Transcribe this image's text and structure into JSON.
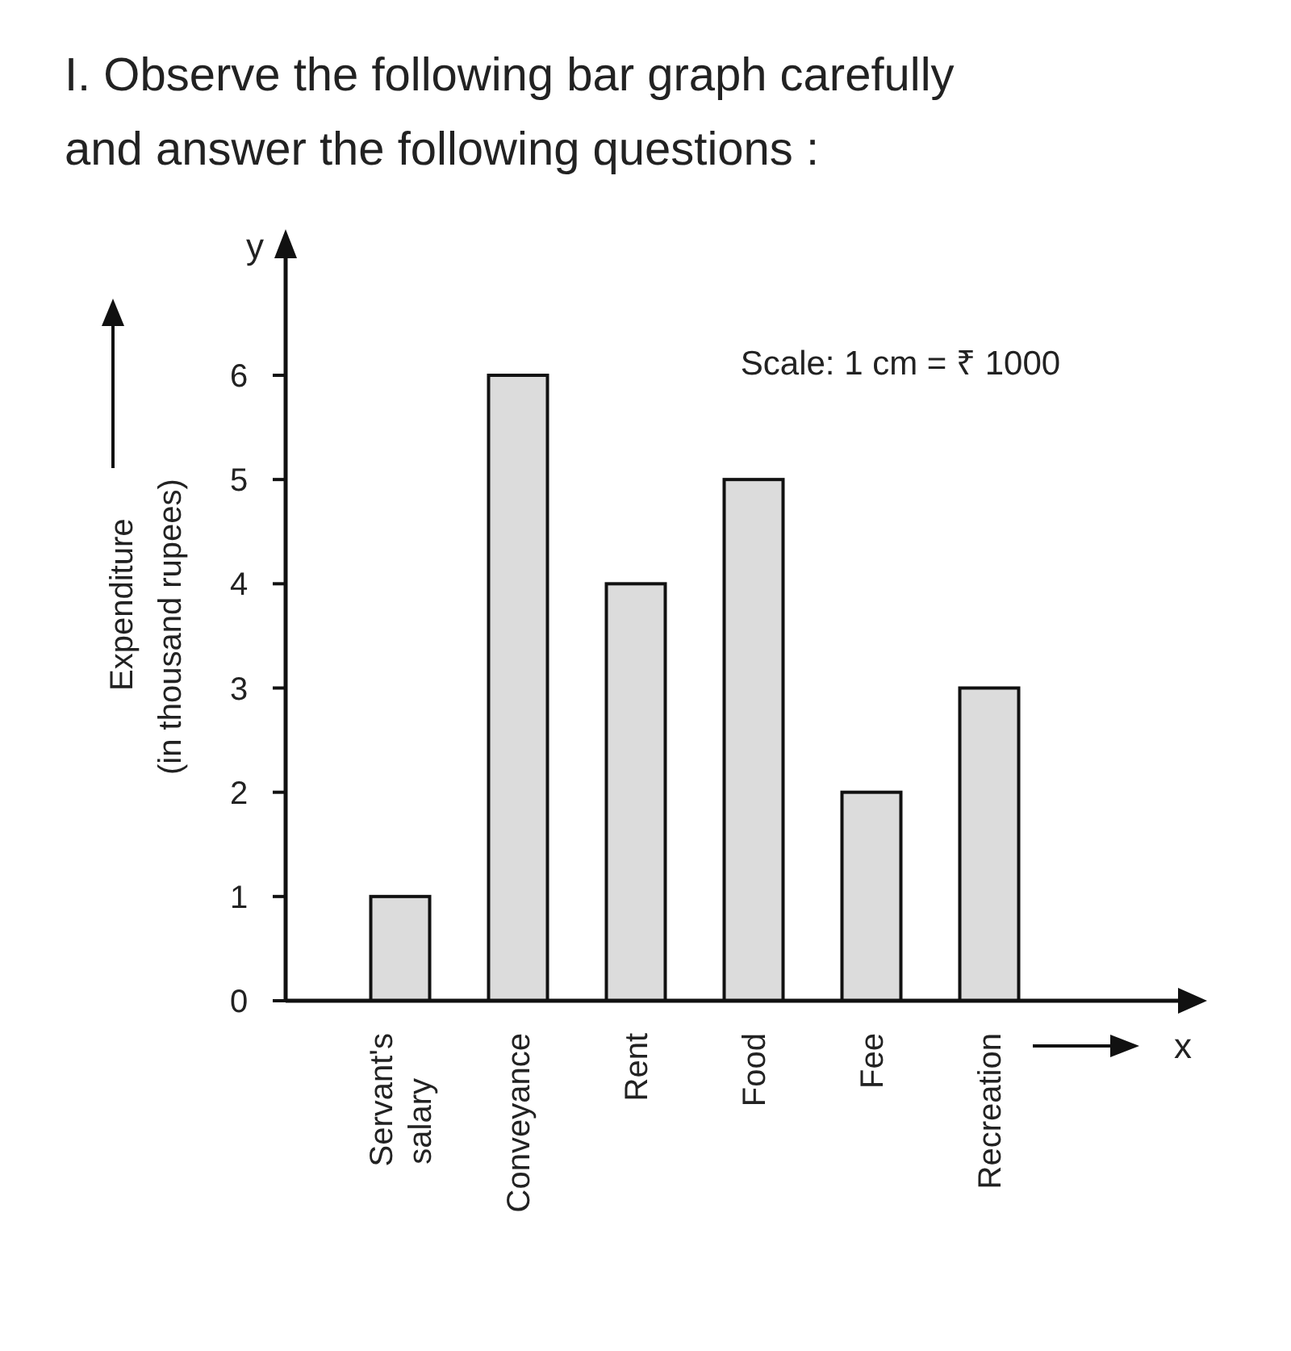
{
  "chart_data": {
    "type": "bar",
    "title": "I. Observe the following bar graph carefully and answer the following questions :",
    "ylabel": "Expenditure (in thousand rupees)",
    "xlabel": "x",
    "annotations": [
      "Scale: 1 cm = ₹ 1000",
      "y"
    ],
    "categories": [
      "Servant's salary",
      "Conveyance",
      "Rent",
      "Food",
      "Fee",
      "Recreation"
    ],
    "values": [
      1,
      6,
      4,
      5,
      2,
      3
    ],
    "color": "#dcdcdc",
    "ylim": [
      0,
      7.2
    ],
    "yticks": [
      0,
      1,
      2,
      3,
      4,
      5,
      6
    ],
    "grid": false
  }
}
